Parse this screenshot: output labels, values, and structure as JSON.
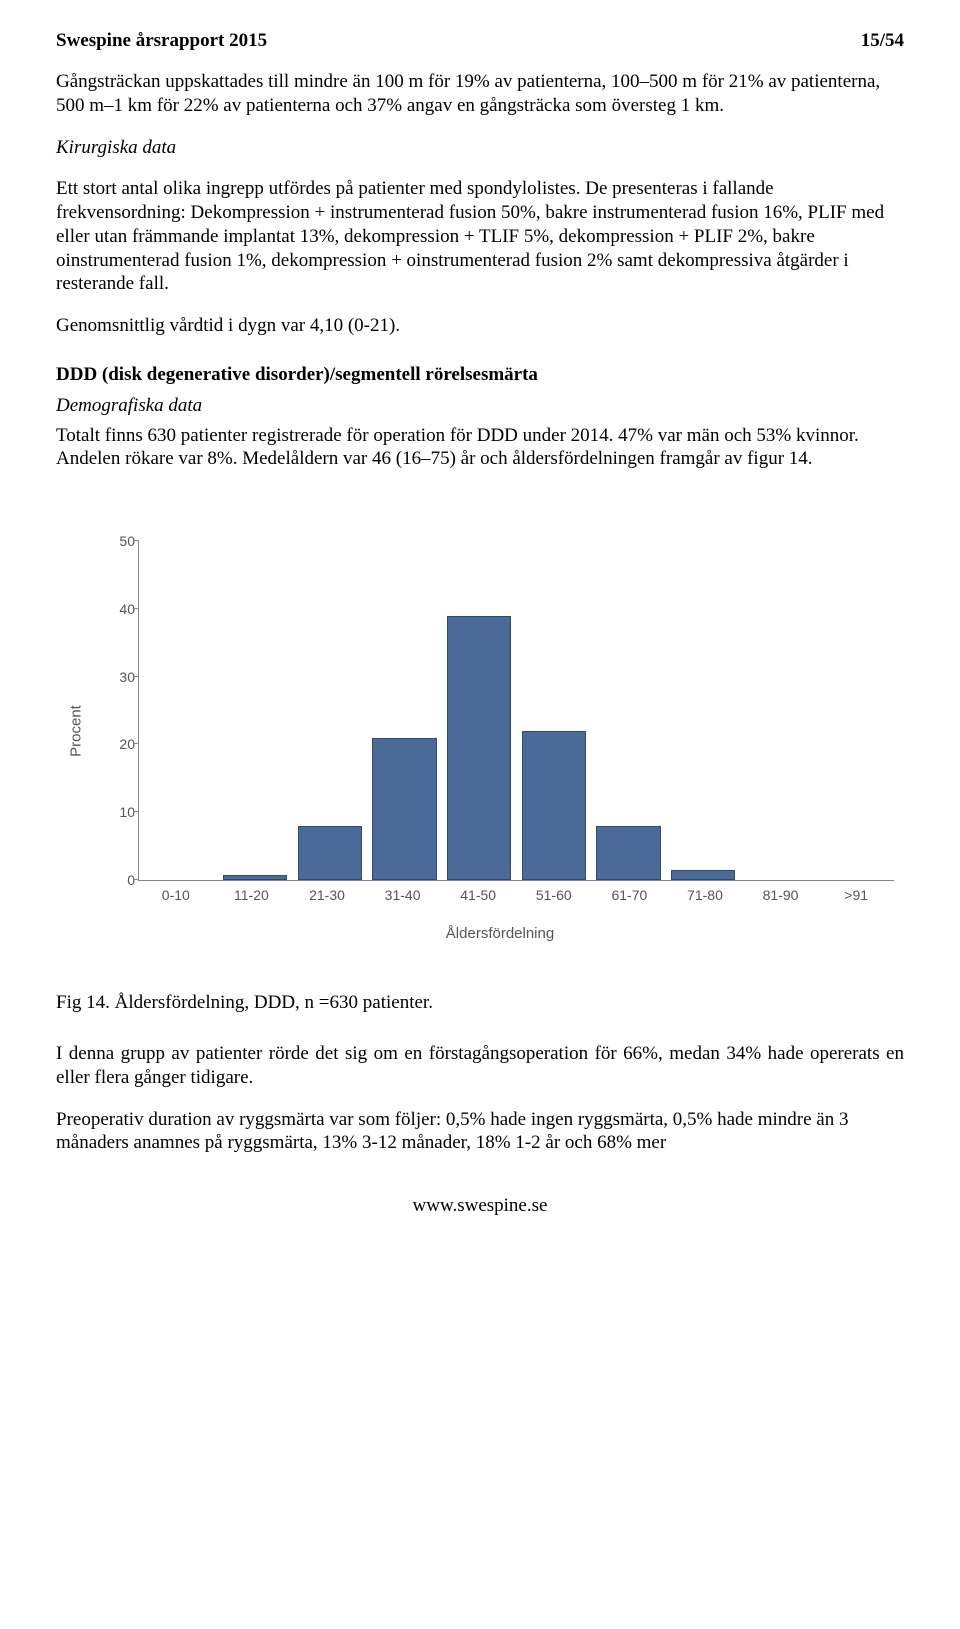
{
  "header": {
    "title": "Swespine årsrapport 2015",
    "page": "15/54"
  },
  "paragraphs": {
    "p1": "Gångsträckan uppskattades till mindre än 100 m för 19% av patienterna, 100–500 m för 21% av patienterna, 500 m–1 km för 22% av patienterna och 37% angav en gångsträcka som översteg 1 km.",
    "kirurg_heading": "Kirurgiska data",
    "p2": "Ett stort antal olika ingrepp utfördes på patienter med spondylolistes. De presenteras i fallande frekvensordning: Dekompression + instrumenterad fusion 50%, bakre instrumenterad fusion 16%, PLIF med eller utan främmande implantat 13%, dekompression + TLIF 5%, dekompression + PLIF 2%, bakre oinstrumenterad fusion 1%, dekompression + oinstrumenterad fusion 2% samt dekompressiva åtgärder i resterande fall.",
    "p3": "Genomsnittlig vårdtid i dygn var 4,10 (0-21).",
    "ddd_heading": "DDD (disk degenerative disorder)/segmentell rörelsesmärta",
    "demog_heading": "Demografiska data",
    "p4": "Totalt finns 630 patienter registrerade för operation för DDD under 2014. 47% var män och 53% kvinnor. Andelen rökare var 8%. Medelåldern var 46 (16–75) år och åldersfördelningen framgår av figur 14.",
    "fig_caption": "Fig 14. Åldersfördelning, DDD, n =630 patienter.",
    "p5": "I denna grupp av patienter rörde det sig om en förstagångsoperation för 66%, medan 34% hade opererats en eller flera gånger tidigare.",
    "p6": "Preoperativ duration av ryggsmärta var som följer: 0,5% hade ingen ryggsmärta, 0,5% hade mindre än 3 månaders anamnes på ryggsmärta, 13% 3-12 månader, 18% 1-2 år och 68% mer"
  },
  "chart": {
    "type": "bar",
    "ylabel": "Procent",
    "xaxis_title": "Åldersfördelning",
    "categories": [
      "0-10",
      "11-20",
      "21-30",
      "31-40",
      "41-50",
      "51-60",
      "61-70",
      "71-80",
      "81-90",
      ">91"
    ],
    "values": [
      0,
      0.7,
      8,
      21,
      39,
      22,
      8,
      1.5,
      0,
      0
    ],
    "ylim_max": 50,
    "ytick_step": 10,
    "yticks": [
      0,
      10,
      20,
      30,
      40,
      50
    ],
    "bar_color": "#4a6a98",
    "bar_border": "#2f4a6e",
    "axis_color": "#888888",
    "label_color": "#555555",
    "label_fontsize": 14,
    "axis_title_fontsize": 15,
    "bar_width_ratio": 0.86,
    "background_color": "#ffffff"
  },
  "footer": {
    "url": "www.swespine.se"
  }
}
